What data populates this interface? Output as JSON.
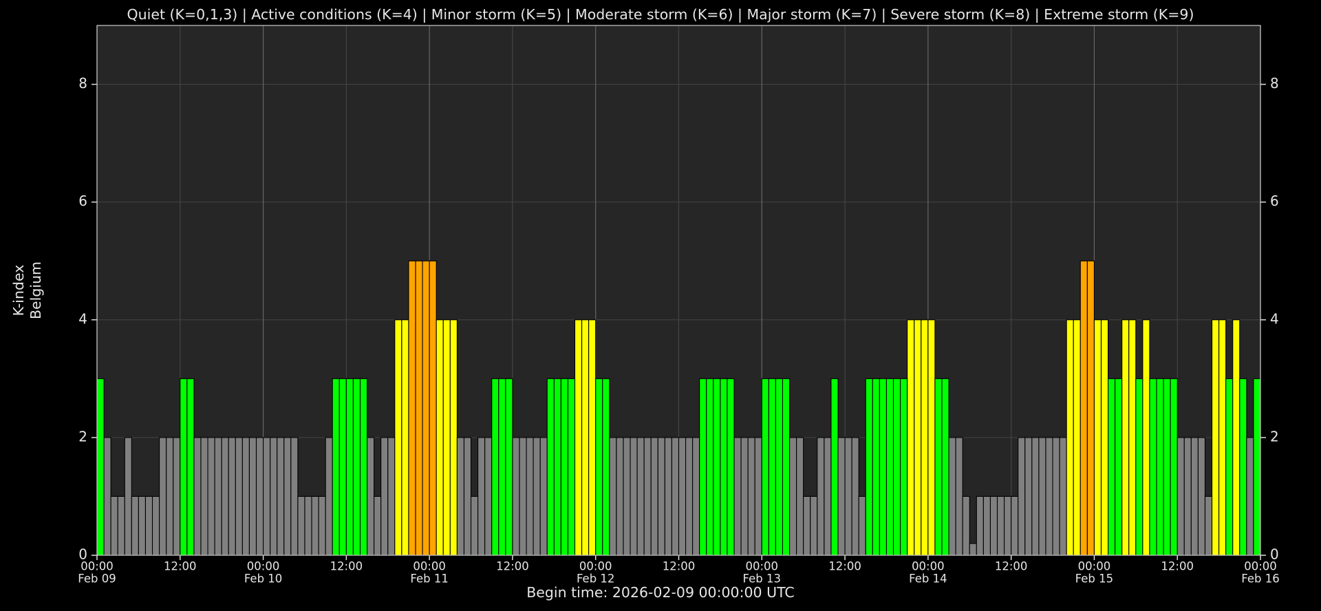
{
  "chart_data": {
    "type": "bar",
    "title": "Quiet (K=0,1,3) | Active conditions (K=4) | Minor storm (K=5) | Moderate storm (K=6) | Major storm (K=7) | Severe storm (K=8) | Extreme storm (K=9)",
    "ylabel": [
      "K-index",
      "Belgium"
    ],
    "xlabel": "Begin time: 2026-02-09 00:00:00 UTC",
    "ylim": [
      0,
      9
    ],
    "yticks": [
      0,
      2,
      4,
      6,
      8
    ],
    "xlim": [
      0,
      168
    ],
    "xticks": [
      {
        "value": 0,
        "label": [
          "00:00",
          "Feb 09"
        ]
      },
      {
        "value": 12,
        "label": [
          "12:00"
        ]
      },
      {
        "value": 24,
        "label": [
          "00:00",
          "Feb 10"
        ]
      },
      {
        "value": 36,
        "label": [
          "12:00"
        ]
      },
      {
        "value": 48,
        "label": [
          "00:00",
          "Feb 11"
        ]
      },
      {
        "value": 60,
        "label": [
          "12:00"
        ]
      },
      {
        "value": 72,
        "label": [
          "00:00",
          "Feb 12"
        ]
      },
      {
        "value": 84,
        "label": [
          "12:00"
        ]
      },
      {
        "value": 96,
        "label": [
          "00:00",
          "Feb 13"
        ]
      },
      {
        "value": 108,
        "label": [
          "12:00"
        ]
      },
      {
        "value": 120,
        "label": [
          "00:00",
          "Feb 14"
        ]
      },
      {
        "value": 132,
        "label": [
          "12:00"
        ]
      },
      {
        "value": 144,
        "label": [
          "00:00",
          "Feb 15"
        ]
      },
      {
        "value": 156,
        "label": [
          "12:00"
        ]
      },
      {
        "value": 168,
        "label": [
          "00:00",
          "Feb 16"
        ]
      }
    ],
    "grid": true,
    "x": [
      0,
      1,
      2,
      3,
      4,
      5,
      6,
      7,
      8,
      9,
      10,
      11,
      12,
      13,
      14,
      15,
      16,
      17,
      18,
      19,
      20,
      21,
      22,
      23,
      24,
      25,
      26,
      27,
      28,
      29,
      30,
      31,
      32,
      33,
      34,
      35,
      36,
      37,
      38,
      39,
      40,
      41,
      42,
      43,
      44,
      45,
      46,
      47,
      48,
      49,
      50,
      51,
      52,
      53,
      54,
      55,
      56,
      57,
      58,
      59,
      60,
      61,
      62,
      63,
      64,
      65,
      66,
      67,
      68,
      69,
      70,
      71,
      72,
      73,
      74,
      75,
      76,
      77,
      78,
      79,
      80,
      81,
      82,
      83,
      84,
      85,
      86,
      87,
      88,
      89,
      90,
      91,
      92,
      93,
      94,
      95,
      96,
      97,
      98,
      99,
      100,
      101,
      102,
      103,
      104,
      105,
      106,
      107,
      108,
      109,
      110,
      111,
      112,
      113,
      114,
      115,
      116,
      117,
      118,
      119,
      120,
      121,
      122,
      123,
      124,
      125,
      126,
      127,
      128,
      129,
      130,
      131,
      132,
      133,
      134,
      135,
      136,
      137,
      138,
      139,
      140,
      141,
      142,
      143,
      144,
      145,
      146,
      147,
      148,
      149,
      150,
      151,
      152,
      153,
      154,
      155,
      156,
      157,
      158,
      159,
      160,
      161,
      162,
      163,
      164,
      165,
      166,
      167
    ],
    "values": [
      3,
      2,
      1,
      1,
      2,
      1,
      1,
      1,
      1,
      2,
      2,
      2,
      3,
      3,
      2,
      2,
      2,
      2,
      2,
      2,
      2,
      2,
      2,
      2,
      2,
      2,
      2,
      2,
      2,
      1,
      1,
      1,
      1,
      2,
      3,
      3,
      3,
      3,
      3,
      2,
      1,
      2,
      2,
      4,
      4,
      5,
      5,
      5,
      5,
      4,
      4,
      4,
      2,
      2,
      1,
      2,
      2,
      3,
      3,
      3,
      2,
      2,
      2,
      2,
      2,
      3,
      3,
      3,
      3,
      4,
      4,
      4,
      3,
      3,
      2,
      2,
      2,
      2,
      2,
      2,
      2,
      2,
      2,
      2,
      2,
      2,
      2,
      3,
      3,
      3,
      3,
      3,
      2,
      2,
      2,
      2,
      3,
      3,
      3,
      3,
      2,
      2,
      1,
      1,
      2,
      2,
      3,
      2,
      2,
      2,
      1,
      3,
      3,
      3,
      3,
      3,
      3,
      4,
      4,
      4,
      4,
      3,
      3,
      2,
      2,
      1,
      0.2,
      1,
      1,
      1,
      1,
      1,
      1,
      2,
      2,
      2,
      2,
      2,
      2,
      2,
      4,
      4,
      5,
      5,
      4,
      4,
      3,
      3,
      4,
      4,
      3,
      4,
      3,
      3,
      3,
      3,
      2,
      2,
      2,
      2,
      1,
      4,
      4,
      3,
      4,
      3,
      2,
      3
    ],
    "colors": [
      "#00ff00",
      "#808080",
      "#808080",
      "#808080",
      "#808080",
      "#808080",
      "#808080",
      "#808080",
      "#808080",
      "#808080",
      "#808080",
      "#808080",
      "#00ff00",
      "#00ff00",
      "#808080",
      "#808080",
      "#808080",
      "#808080",
      "#808080",
      "#808080",
      "#808080",
      "#808080",
      "#808080",
      "#808080",
      "#808080",
      "#808080",
      "#808080",
      "#808080",
      "#808080",
      "#808080",
      "#808080",
      "#808080",
      "#808080",
      "#808080",
      "#00ff00",
      "#00ff00",
      "#00ff00",
      "#00ff00",
      "#00ff00",
      "#808080",
      "#808080",
      "#808080",
      "#808080",
      "#ffff00",
      "#ffff00",
      "#ffa500",
      "#ffa500",
      "#ffa500",
      "#ffa500",
      "#ffff00",
      "#ffff00",
      "#ffff00",
      "#808080",
      "#808080",
      "#808080",
      "#808080",
      "#808080",
      "#00ff00",
      "#00ff00",
      "#00ff00",
      "#808080",
      "#808080",
      "#808080",
      "#808080",
      "#808080",
      "#00ff00",
      "#00ff00",
      "#00ff00",
      "#00ff00",
      "#ffff00",
      "#ffff00",
      "#ffff00",
      "#00ff00",
      "#00ff00",
      "#808080",
      "#808080",
      "#808080",
      "#808080",
      "#808080",
      "#808080",
      "#808080",
      "#808080",
      "#808080",
      "#808080",
      "#808080",
      "#808080",
      "#808080",
      "#00ff00",
      "#00ff00",
      "#00ff00",
      "#00ff00",
      "#00ff00",
      "#808080",
      "#808080",
      "#808080",
      "#808080",
      "#00ff00",
      "#00ff00",
      "#00ff00",
      "#00ff00",
      "#808080",
      "#808080",
      "#808080",
      "#808080",
      "#808080",
      "#808080",
      "#00ff00",
      "#808080",
      "#808080",
      "#808080",
      "#808080",
      "#00ff00",
      "#00ff00",
      "#00ff00",
      "#00ff00",
      "#00ff00",
      "#00ff00",
      "#ffff00",
      "#ffff00",
      "#ffff00",
      "#ffff00",
      "#00ff00",
      "#00ff00",
      "#808080",
      "#808080",
      "#808080",
      "#808080",
      "#808080",
      "#808080",
      "#808080",
      "#808080",
      "#808080",
      "#808080",
      "#808080",
      "#808080",
      "#808080",
      "#808080",
      "#808080",
      "#808080",
      "#808080",
      "#ffff00",
      "#ffff00",
      "#ffa500",
      "#ffa500",
      "#ffff00",
      "#ffff00",
      "#00ff00",
      "#00ff00",
      "#ffff00",
      "#ffff00",
      "#00ff00",
      "#ffff00",
      "#00ff00",
      "#00ff00",
      "#00ff00",
      "#00ff00",
      "#808080",
      "#808080",
      "#808080",
      "#808080",
      "#808080",
      "#ffff00",
      "#ffff00",
      "#00ff00",
      "#ffff00",
      "#00ff00",
      "#808080",
      "#00ff00"
    ]
  }
}
